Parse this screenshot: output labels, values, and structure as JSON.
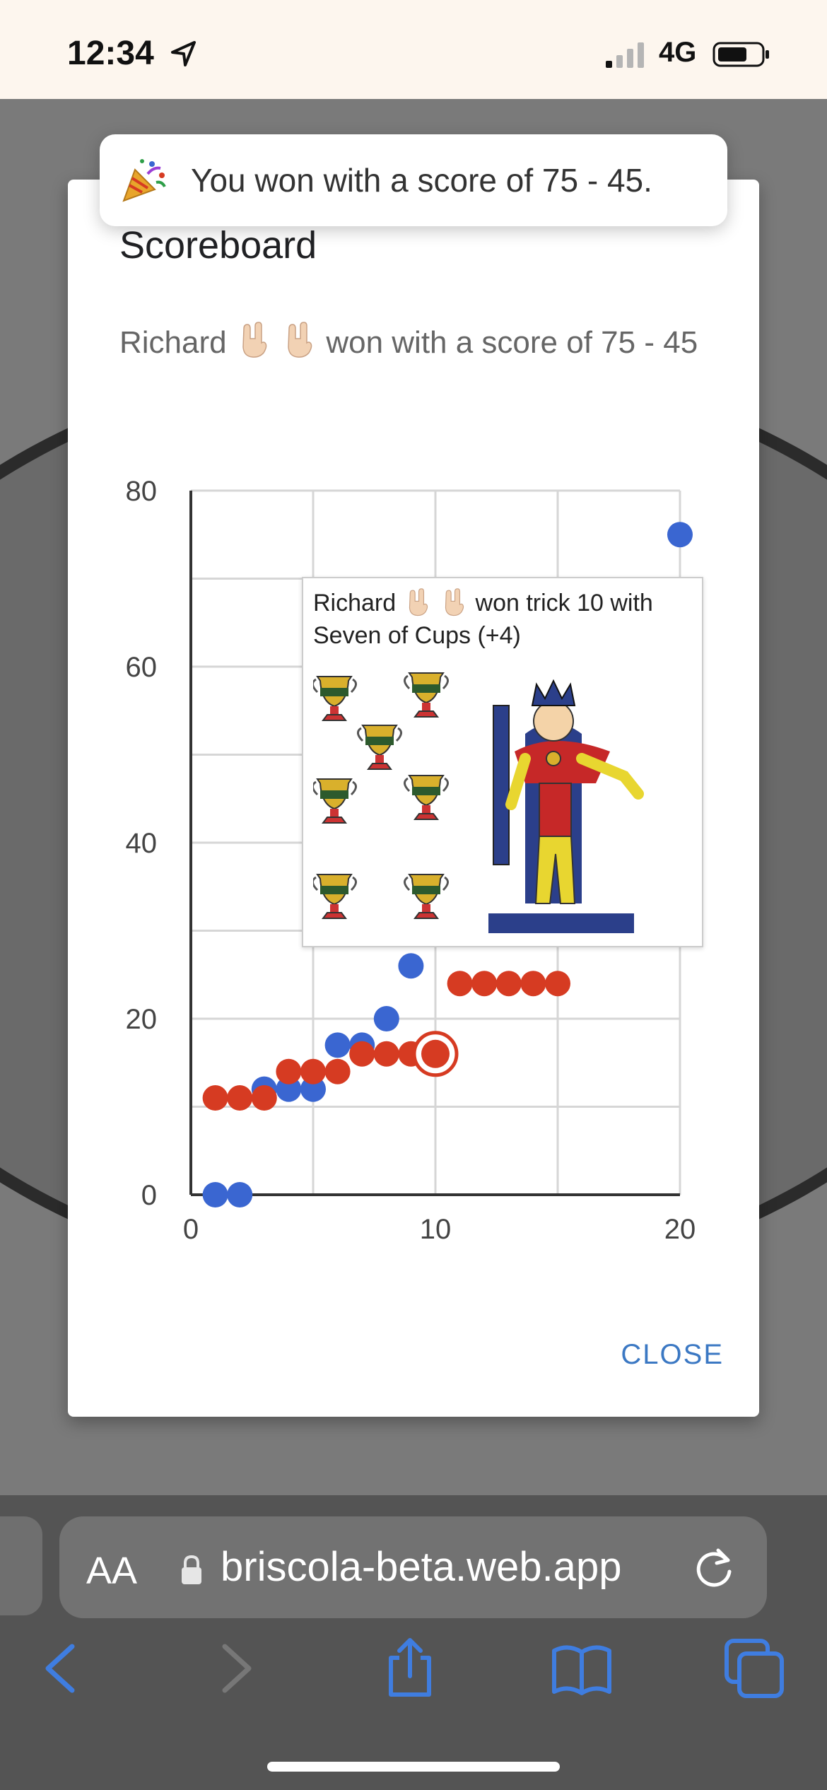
{
  "status_bar": {
    "time": "12:34",
    "network": "4G"
  },
  "toast": {
    "icon": "party-popper-icon",
    "text": "You won with a score of 75 - 45."
  },
  "dialog": {
    "title": "Scoreboard",
    "player": "Richard",
    "player_emoji": "rock-on-hand-icon",
    "message_rest": "won with a score of 75 - 45",
    "close_label": "CLOSE"
  },
  "chart_data": {
    "type": "scatter",
    "x_ticks": [
      "0",
      "10",
      "20"
    ],
    "y_ticks": [
      "0",
      "20",
      "40",
      "60",
      "80"
    ],
    "xlim": [
      0,
      20
    ],
    "ylim": [
      0,
      80
    ],
    "grid": true,
    "series": [
      {
        "color": "#3a66d1",
        "points": [
          [
            1,
            0
          ],
          [
            2,
            0
          ],
          [
            3,
            12
          ],
          [
            4,
            12
          ],
          [
            5,
            12
          ],
          [
            6,
            17
          ],
          [
            7,
            17
          ],
          [
            8,
            20
          ],
          [
            9,
            26
          ],
          [
            20,
            75
          ]
        ]
      },
      {
        "color": "#d63b22",
        "points": [
          [
            1,
            11
          ],
          [
            2,
            11
          ],
          [
            3,
            11
          ],
          [
            4,
            14
          ],
          [
            5,
            14
          ],
          [
            6,
            14
          ],
          [
            7,
            16
          ],
          [
            8,
            16
          ],
          [
            9,
            16
          ],
          [
            10,
            16
          ],
          [
            11,
            24
          ],
          [
            12,
            24
          ],
          [
            13,
            24
          ],
          [
            14,
            24
          ],
          [
            15,
            24
          ]
        ]
      }
    ],
    "highlight": {
      "series": 1,
      "x": 10,
      "y": 16
    }
  },
  "tooltip": {
    "player": "Richard",
    "text_rest": "won trick 10 with",
    "line2": "Seven of Cups (+4)",
    "card_image": "seven-of-cups-card"
  },
  "browser": {
    "url": "briscola-beta.web.app",
    "aa_label": "AA"
  }
}
